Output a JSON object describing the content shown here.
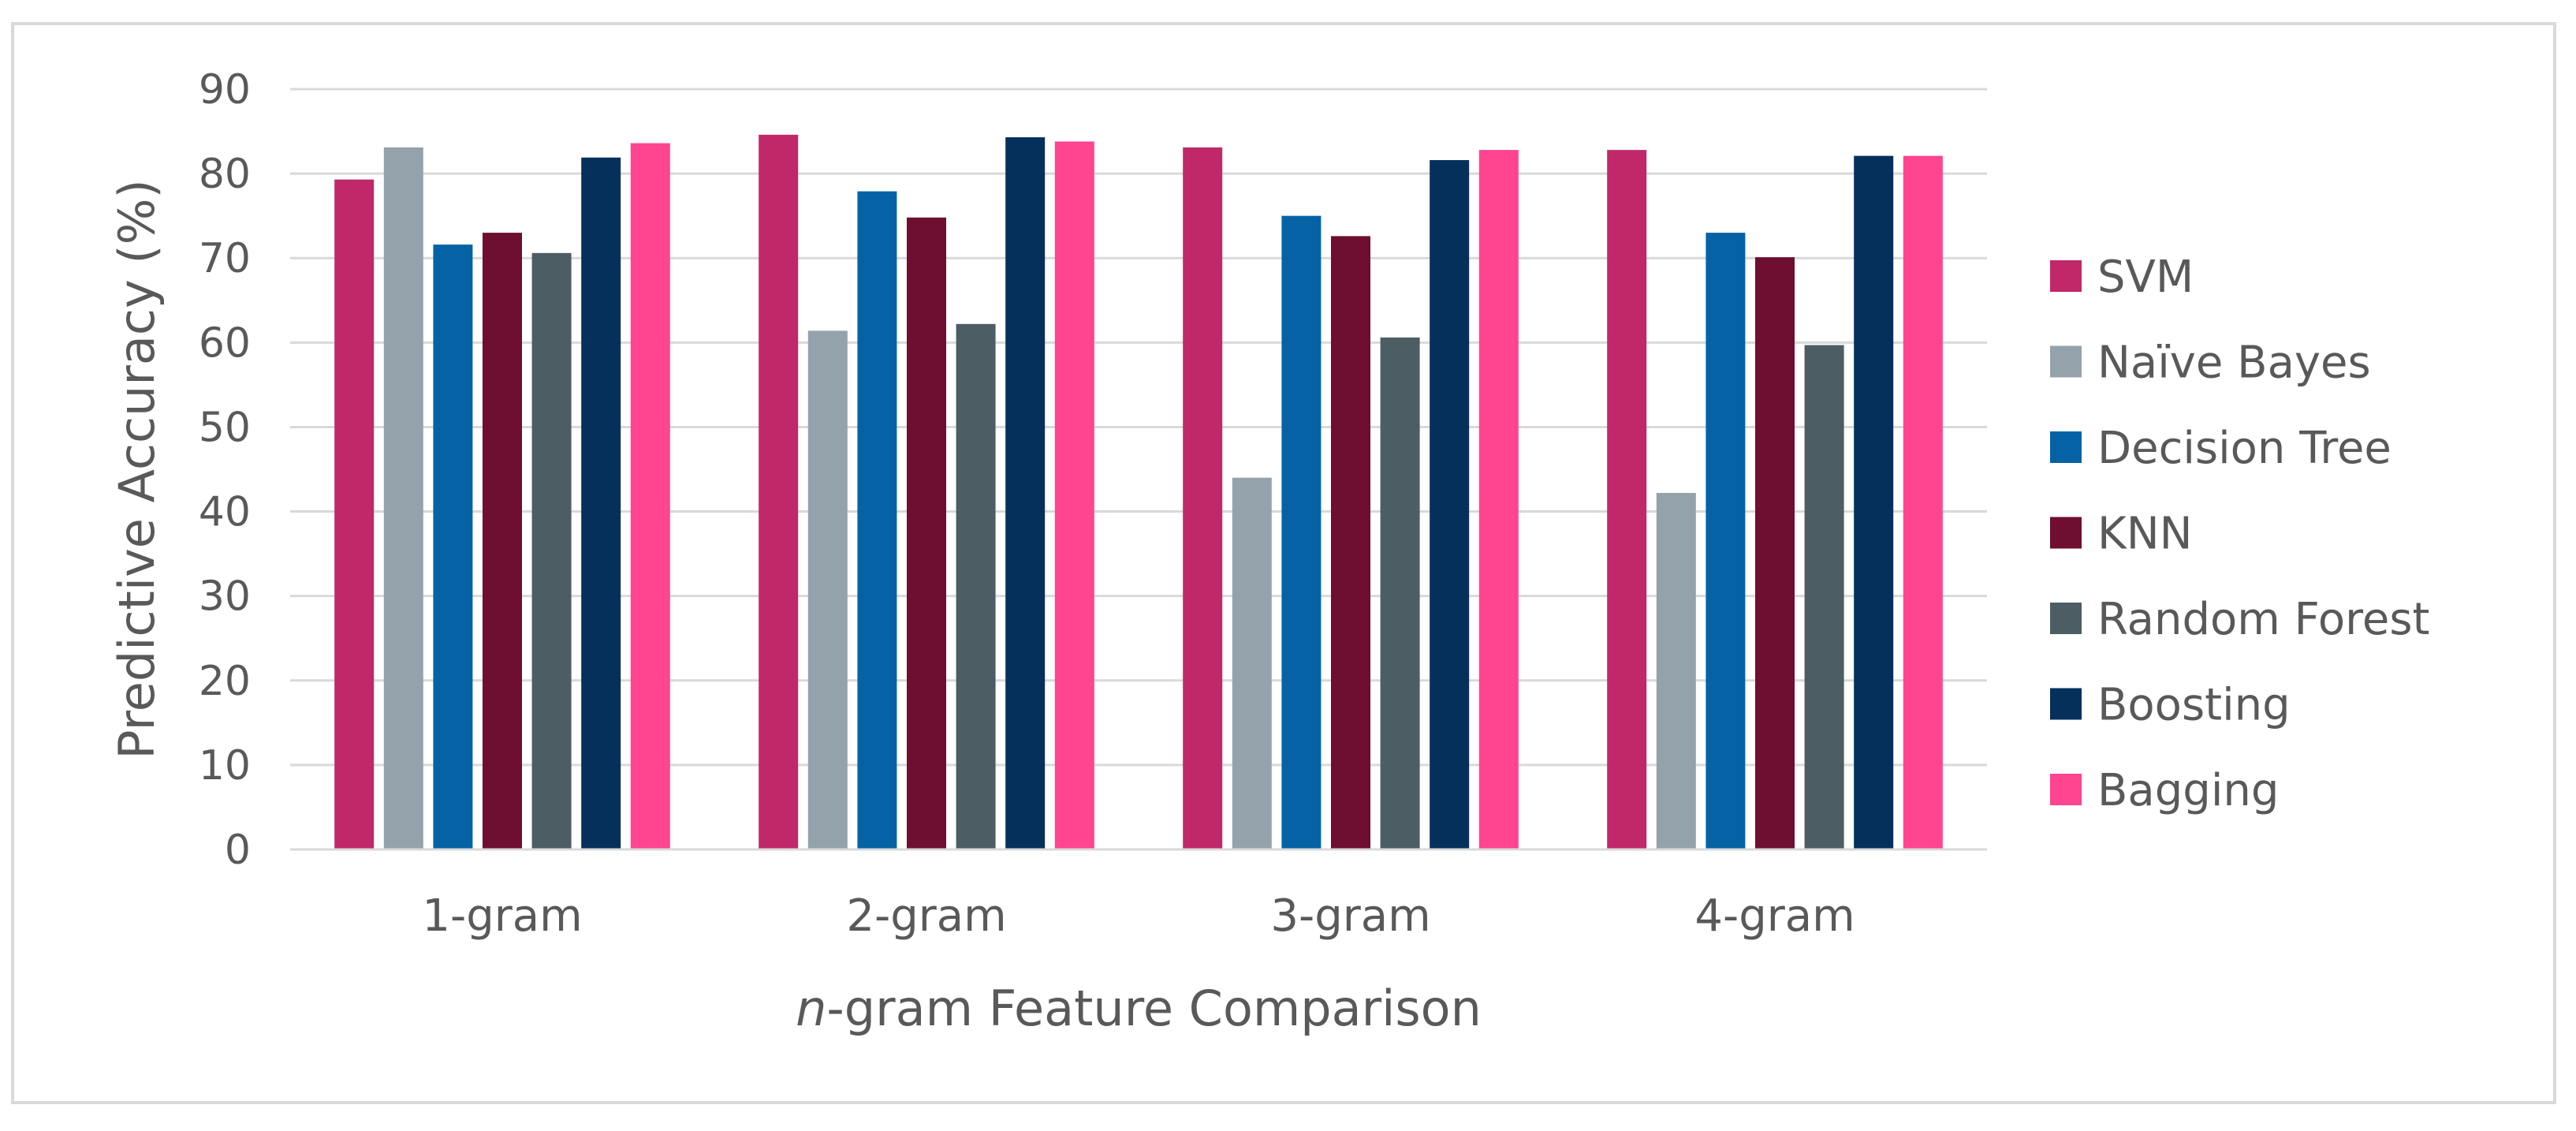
{
  "chart_data": {
    "type": "bar",
    "title": "",
    "xlabel_italic": "n",
    "xlabel_rest": "-gram Feature Comparison",
    "ylabel": "Predictive Accuracy (%)",
    "ylim": [
      0,
      90
    ],
    "yticks": [
      0,
      10,
      20,
      30,
      40,
      50,
      60,
      70,
      80,
      90
    ],
    "grid": true,
    "legend_position": "right",
    "categories": [
      "1-gram",
      "2-gram",
      "3-gram",
      "4-gram"
    ],
    "series": [
      {
        "name": "SVM",
        "color": "#C0286A",
        "values": [
          79.3,
          84.6,
          83.1,
          82.8
        ]
      },
      {
        "name": "Naïve Bayes",
        "color": "#94A3AB",
        "values": [
          83.1,
          61.4,
          44.0,
          42.2
        ]
      },
      {
        "name": "Decision Tree",
        "color": "#0563A5",
        "values": [
          71.6,
          77.9,
          75.0,
          73.0
        ]
      },
      {
        "name": "KNN",
        "color": "#6E0E30",
        "values": [
          73.0,
          74.8,
          72.6,
          70.1
        ]
      },
      {
        "name": "Random Forest",
        "color": "#4C5D63",
        "values": [
          70.6,
          62.2,
          60.6,
          59.7
        ]
      },
      {
        "name": "Boosting",
        "color": "#06305C",
        "values": [
          81.9,
          84.3,
          81.6,
          82.1
        ]
      },
      {
        "name": "Bagging",
        "color": "#FF4490",
        "values": [
          83.6,
          83.8,
          82.8,
          82.1
        ]
      }
    ]
  }
}
